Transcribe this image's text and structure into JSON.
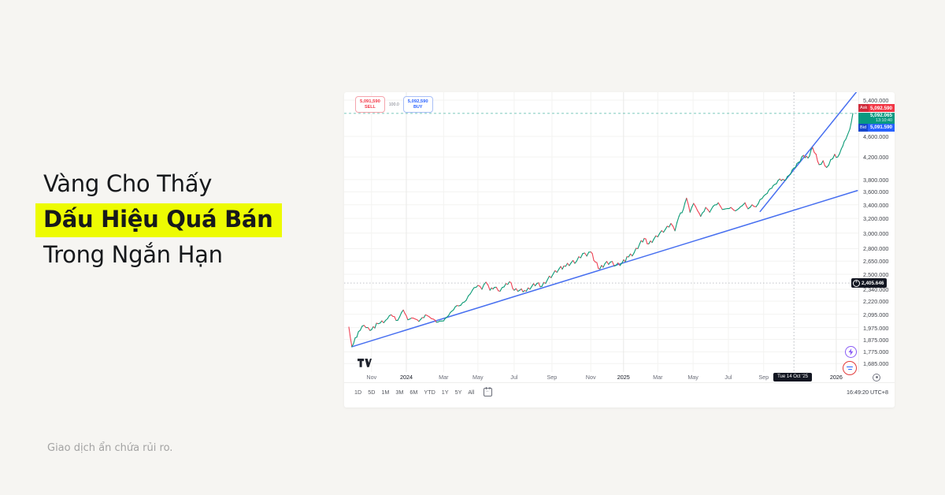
{
  "canvas": {
    "background": "#f6f5f2"
  },
  "headline": {
    "line1": "Vàng Cho Thấy",
    "line2": "Dấu Hiệu Quá Bán",
    "line3": "Trong Ngắn Hạn",
    "highlight_color": "#edfb02",
    "text_color": "#17191c"
  },
  "disclaimer": "Giao dịch ẩn chứa rủi ro.",
  "quote_panel": {
    "sell": {
      "price": "5,091,590",
      "label": "SELL",
      "color": "#f23645"
    },
    "spread": "100.0",
    "buy": {
      "price": "5,092,590",
      "label": "BUY",
      "color": "#2962ff"
    }
  },
  "axis_badges": {
    "ask": {
      "tag": "Ask",
      "price": "5,092.590",
      "color": "#f23645"
    },
    "last": {
      "price": "5,092.065",
      "countdown": "13:10:40",
      "color": "#089981"
    },
    "bid": {
      "tag": "Bid",
      "price": "5,091.590",
      "color": "#2962ff"
    }
  },
  "crosshair_badges": {
    "price_label": "2,405.646",
    "date_label": "Tue 14 Oct '25",
    "badge_color": "#131722"
  },
  "toolbar": {
    "timeframes": [
      "1D",
      "5D",
      "1M",
      "3M",
      "6M",
      "YTD",
      "1Y",
      "5Y",
      "All"
    ],
    "clock": "16:49:20 UTC+8"
  },
  "icons": {
    "tradingview_logo": "tradingview-logo",
    "calendar": "calendar-icon",
    "target": "target-icon",
    "lightning": "lightning-icon",
    "chat": "chat-icon",
    "plus": "plus-circle-icon"
  },
  "chart_data": {
    "type": "candlestick",
    "instrument_implied": "Gold spot price",
    "grid": true,
    "y_axis": {
      "scale": "log",
      "range": [
        1650,
        5550
      ],
      "labels": [
        {
          "value": 5400,
          "label": "5,400.000"
        },
        {
          "value": 4600,
          "label": "4,600.000"
        },
        {
          "value": 4200,
          "label": "4,200.000"
        },
        {
          "value": 3800,
          "label": "3,800.000"
        },
        {
          "value": 3600,
          "label": "3,600.000"
        },
        {
          "value": 3400,
          "label": "3,400.000"
        },
        {
          "value": 3200,
          "label": "3,200.000"
        },
        {
          "value": 3000,
          "label": "3,000.000"
        },
        {
          "value": 2800,
          "label": "2,800.000"
        },
        {
          "value": 2650,
          "label": "2,650.000"
        },
        {
          "value": 2500,
          "label": "2,500.000"
        },
        {
          "value": 2340,
          "label": "2,340.000"
        },
        {
          "value": 2220,
          "label": "2,220.000"
        },
        {
          "value": 2095,
          "label": "2,095.000"
        },
        {
          "value": 1975,
          "label": "1,975.000"
        },
        {
          "value": 1875,
          "label": "1,875.000"
        },
        {
          "value": 1775,
          "label": "1,775.000"
        },
        {
          "value": 1685,
          "label": "1,685.000"
        }
      ]
    },
    "x_axis": {
      "range_implied": [
        "Oct 2023",
        "Jan 2026"
      ],
      "labels": [
        {
          "t": 0.045,
          "label": "Nov",
          "year": false
        },
        {
          "t": 0.114,
          "label": "2024",
          "year": true
        },
        {
          "t": 0.188,
          "label": "Mar",
          "year": false
        },
        {
          "t": 0.256,
          "label": "May",
          "year": false
        },
        {
          "t": 0.328,
          "label": "Jul",
          "year": false
        },
        {
          "t": 0.403,
          "label": "Sep",
          "year": false
        },
        {
          "t": 0.48,
          "label": "Nov",
          "year": false
        },
        {
          "t": 0.545,
          "label": "2025",
          "year": true
        },
        {
          "t": 0.613,
          "label": "Mar",
          "year": false
        },
        {
          "t": 0.683,
          "label": "May",
          "year": false
        },
        {
          "t": 0.753,
          "label": "Jul",
          "year": false
        },
        {
          "t": 0.823,
          "label": "Sep",
          "year": false
        },
        {
          "t": 0.967,
          "label": "2026",
          "year": true
        }
      ]
    },
    "series": {
      "name": "price",
      "up_color": "#0d9b77",
      "down_color": "#ef4355",
      "points": [
        [
          0.0,
          1980
        ],
        [
          0.006,
          1815
        ],
        [
          0.019,
          1940
        ],
        [
          0.03,
          1995
        ],
        [
          0.042,
          1950
        ],
        [
          0.058,
          2010
        ],
        [
          0.073,
          2040
        ],
        [
          0.084,
          2090
        ],
        [
          0.097,
          2040
        ],
        [
          0.108,
          2135
        ],
        [
          0.117,
          2045
        ],
        [
          0.128,
          2060
        ],
        [
          0.139,
          2030
        ],
        [
          0.152,
          2090
        ],
        [
          0.164,
          2055
        ],
        [
          0.177,
          2025
        ],
        [
          0.188,
          2035
        ],
        [
          0.198,
          2085
        ],
        [
          0.211,
          2165
        ],
        [
          0.222,
          2180
        ],
        [
          0.233,
          2230
        ],
        [
          0.245,
          2330
        ],
        [
          0.256,
          2380
        ],
        [
          0.264,
          2340
        ],
        [
          0.272,
          2415
        ],
        [
          0.28,
          2330
        ],
        [
          0.289,
          2360
        ],
        [
          0.3,
          2320
        ],
        [
          0.308,
          2365
        ],
        [
          0.319,
          2420
        ],
        [
          0.328,
          2330
        ],
        [
          0.339,
          2330
        ],
        [
          0.352,
          2320
        ],
        [
          0.363,
          2370
        ],
        [
          0.373,
          2400
        ],
        [
          0.383,
          2370
        ],
        [
          0.394,
          2440
        ],
        [
          0.405,
          2500
        ],
        [
          0.417,
          2560
        ],
        [
          0.43,
          2590
        ],
        [
          0.441,
          2630
        ],
        [
          0.452,
          2650
        ],
        [
          0.464,
          2740
        ],
        [
          0.472,
          2710
        ],
        [
          0.48,
          2760
        ],
        [
          0.489,
          2640
        ],
        [
          0.498,
          2560
        ],
        [
          0.508,
          2620
        ],
        [
          0.519,
          2640
        ],
        [
          0.53,
          2600
        ],
        [
          0.542,
          2630
        ],
        [
          0.555,
          2700
        ],
        [
          0.566,
          2750
        ],
        [
          0.577,
          2860
        ],
        [
          0.586,
          2930
        ],
        [
          0.595,
          2860
        ],
        [
          0.605,
          2920
        ],
        [
          0.617,
          3000
        ],
        [
          0.628,
          3050
        ],
        [
          0.639,
          3130
        ],
        [
          0.647,
          3030
        ],
        [
          0.655,
          3230
        ],
        [
          0.664,
          3340
        ],
        [
          0.67,
          3500
        ],
        [
          0.677,
          3290
        ],
        [
          0.684,
          3420
        ],
        [
          0.692,
          3310
        ],
        [
          0.698,
          3230
        ],
        [
          0.708,
          3360
        ],
        [
          0.716,
          3290
        ],
        [
          0.723,
          3380
        ],
        [
          0.733,
          3430
        ],
        [
          0.741,
          3330
        ],
        [
          0.748,
          3340
        ],
        [
          0.758,
          3360
        ],
        [
          0.767,
          3310
        ],
        [
          0.777,
          3370
        ],
        [
          0.786,
          3430
        ],
        [
          0.792,
          3340
        ],
        [
          0.8,
          3400
        ],
        [
          0.808,
          3370
        ],
        [
          0.816,
          3480
        ],
        [
          0.827,
          3560
        ],
        [
          0.836,
          3650
        ],
        [
          0.845,
          3720
        ],
        [
          0.855,
          3810
        ],
        [
          0.864,
          3790
        ],
        [
          0.873,
          3870
        ],
        [
          0.883,
          4000
        ],
        [
          0.892,
          4100
        ],
        [
          0.902,
          4230
        ],
        [
          0.911,
          4180
        ],
        [
          0.92,
          4380
        ],
        [
          0.927,
          4250
        ],
        [
          0.933,
          4060
        ],
        [
          0.941,
          4130
        ],
        [
          0.948,
          4010
        ],
        [
          0.956,
          4150
        ],
        [
          0.964,
          4250
        ],
        [
          0.97,
          4200
        ],
        [
          0.977,
          4350
        ],
        [
          0.983,
          4500
        ],
        [
          0.989,
          4620
        ],
        [
          0.994,
          4750
        ],
        [
          0.997,
          4900
        ],
        [
          1.0,
          5092
        ]
      ]
    },
    "trendlines": [
      {
        "from": [
          0.006,
          1815
        ],
        "to": [
          1.009,
          3620
        ],
        "color": "#476ff0"
      },
      {
        "from": [
          0.816,
          3300
        ],
        "to": [
          1.013,
          5690
        ],
        "color": "#476ff0"
      }
    ],
    "current_price_line": {
      "value": 5092.065,
      "color": "#089981"
    },
    "crosshair_point": {
      "t": 0.883,
      "price": 2405.646
    }
  }
}
